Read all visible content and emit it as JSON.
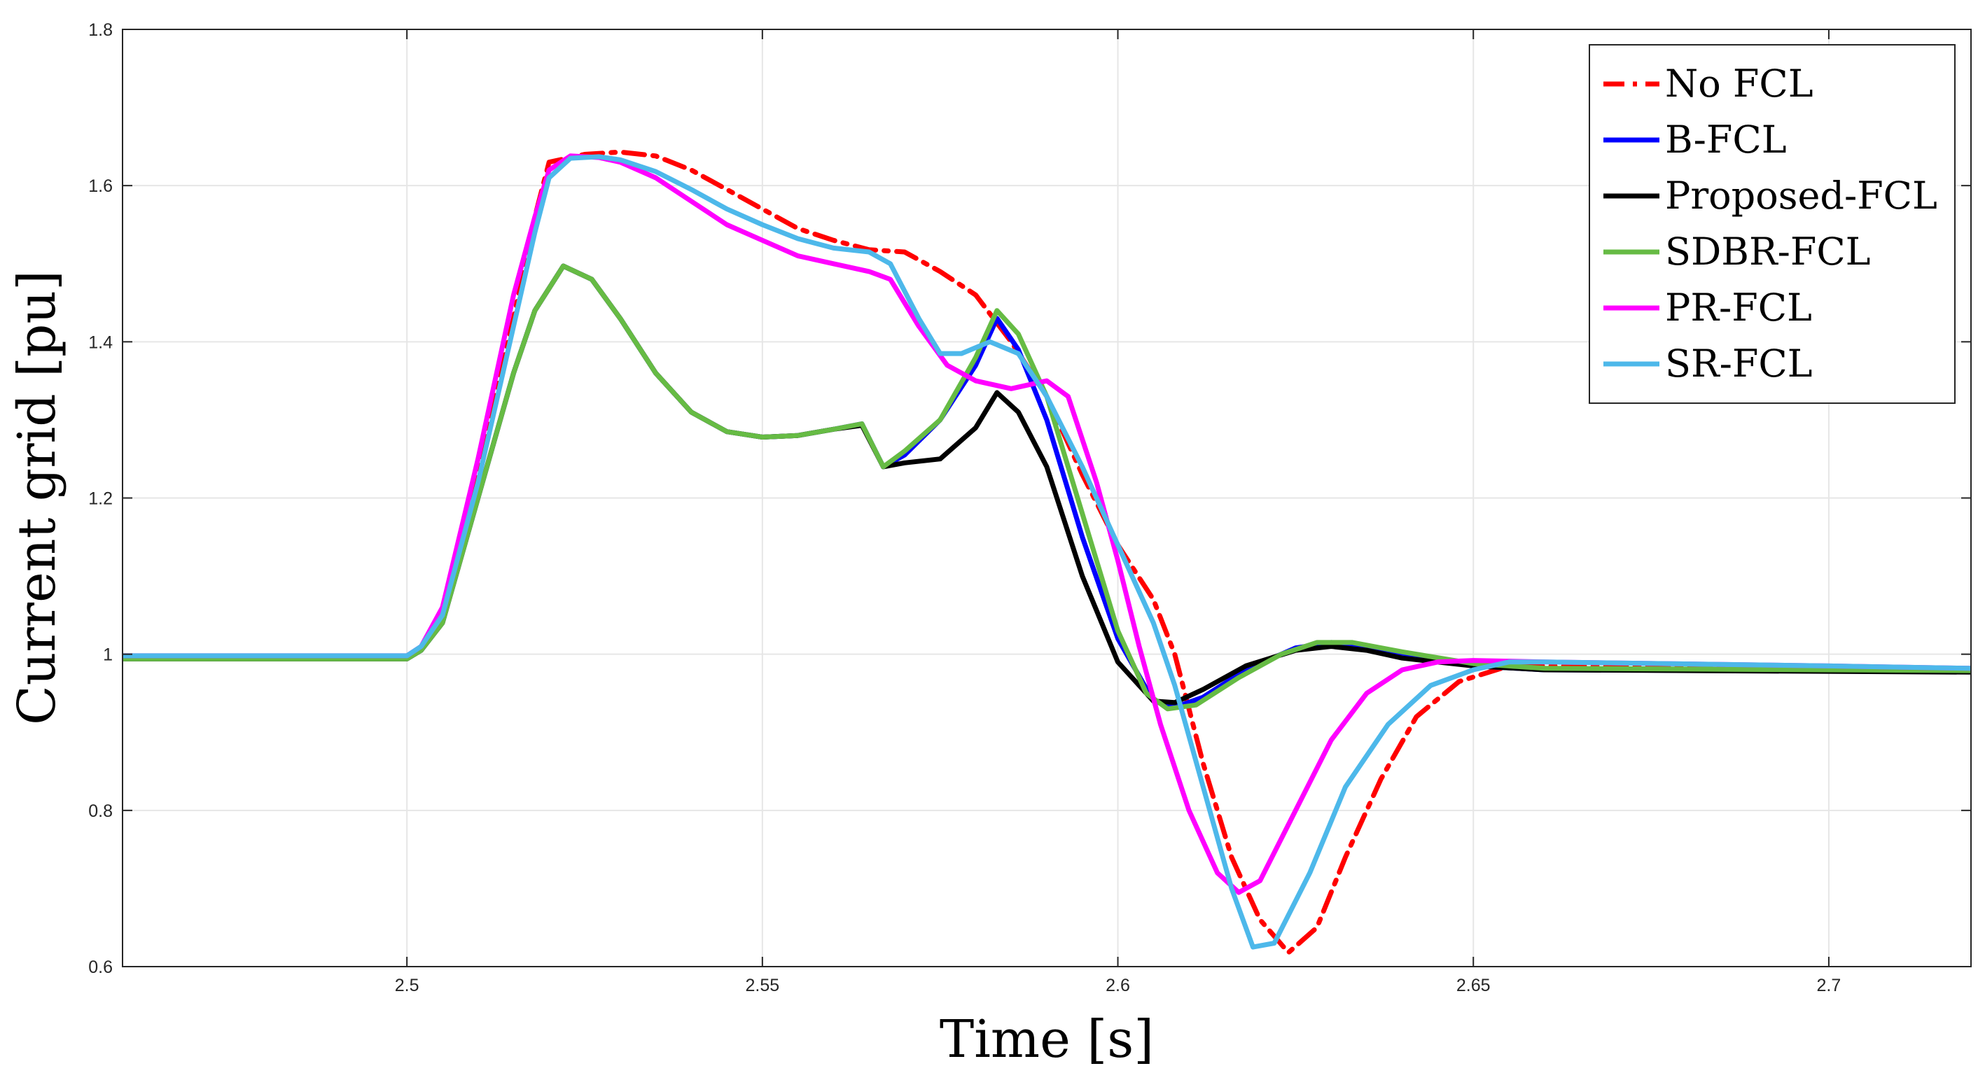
{
  "chart_data": {
    "type": "line",
    "title": "",
    "xlabel": "Time [s]",
    "ylabel": "Current grid [pu]",
    "xlim": [
      2.46,
      2.72
    ],
    "ylim": [
      0.6,
      1.8
    ],
    "xticks": [
      2.5,
      2.55,
      2.6,
      2.65,
      2.7
    ],
    "xtick_labels": [
      "2.5",
      "2.55",
      "2.6",
      "2.65",
      "2.7"
    ],
    "yticks": [
      0.6,
      0.8,
      1.0,
      1.2,
      1.4,
      1.6,
      1.8
    ],
    "ytick_labels": [
      "0.6",
      "0.8",
      "1",
      "1.2",
      "1.4",
      "1.6",
      "1.8"
    ],
    "grid": true,
    "legend_position": "top-right",
    "series": [
      {
        "name": "No FCL",
        "color": "#ff0000",
        "dash": "dashdot",
        "points": [
          [
            2.46,
            0.994
          ],
          [
            2.5,
            0.994
          ],
          [
            2.502,
            1.01
          ],
          [
            2.505,
            1.05
          ],
          [
            2.51,
            1.24
          ],
          [
            2.515,
            1.43
          ],
          [
            2.518,
            1.56
          ],
          [
            2.52,
            1.63
          ],
          [
            2.525,
            1.64
          ],
          [
            2.53,
            1.643
          ],
          [
            2.535,
            1.638
          ],
          [
            2.54,
            1.62
          ],
          [
            2.545,
            1.595
          ],
          [
            2.55,
            1.57
          ],
          [
            2.555,
            1.545
          ],
          [
            2.56,
            1.53
          ],
          [
            2.565,
            1.518
          ],
          [
            2.57,
            1.515
          ],
          [
            2.575,
            1.49
          ],
          [
            2.58,
            1.46
          ],
          [
            2.585,
            1.4
          ],
          [
            2.59,
            1.33
          ],
          [
            2.595,
            1.23
          ],
          [
            2.6,
            1.14
          ],
          [
            2.605,
            1.07
          ],
          [
            2.608,
            1.0
          ],
          [
            2.612,
            0.86
          ],
          [
            2.616,
            0.74
          ],
          [
            2.62,
            0.66
          ],
          [
            2.624,
            0.618
          ],
          [
            2.628,
            0.65
          ],
          [
            2.632,
            0.74
          ],
          [
            2.637,
            0.84
          ],
          [
            2.642,
            0.92
          ],
          [
            2.648,
            0.965
          ],
          [
            2.655,
            0.985
          ],
          [
            2.66,
            0.985
          ],
          [
            2.7,
            0.982
          ],
          [
            2.72,
            0.98
          ]
        ]
      },
      {
        "name": "B-FCL",
        "color": "#0000ff",
        "dash": "solid",
        "points": [
          [
            2.46,
            0.994
          ],
          [
            2.5,
            0.994
          ],
          [
            2.502,
            1.005
          ],
          [
            2.505,
            1.04
          ],
          [
            2.51,
            1.2
          ],
          [
            2.515,
            1.36
          ],
          [
            2.518,
            1.44
          ],
          [
            2.522,
            1.497
          ],
          [
            2.526,
            1.48
          ],
          [
            2.53,
            1.43
          ],
          [
            2.535,
            1.36
          ],
          [
            2.54,
            1.31
          ],
          [
            2.545,
            1.285
          ],
          [
            2.55,
            1.278
          ],
          [
            2.555,
            1.28
          ],
          [
            2.56,
            1.288
          ],
          [
            2.564,
            1.295
          ],
          [
            2.567,
            1.24
          ],
          [
            2.57,
            1.255
          ],
          [
            2.575,
            1.3
          ],
          [
            2.58,
            1.37
          ],
          [
            2.583,
            1.43
          ],
          [
            2.586,
            1.39
          ],
          [
            2.59,
            1.3
          ],
          [
            2.595,
            1.15
          ],
          [
            2.6,
            1.02
          ],
          [
            2.605,
            0.94
          ],
          [
            2.608,
            0.932
          ],
          [
            2.612,
            0.945
          ],
          [
            2.618,
            0.98
          ],
          [
            2.625,
            1.008
          ],
          [
            2.63,
            1.015
          ],
          [
            2.635,
            1.01
          ],
          [
            2.64,
            0.998
          ],
          [
            2.65,
            0.985
          ],
          [
            2.66,
            0.98
          ],
          [
            2.72,
            0.978
          ]
        ]
      },
      {
        "name": "Proposed-FCL",
        "color": "#000000",
        "dash": "solid",
        "points": [
          [
            2.46,
            0.994
          ],
          [
            2.5,
            0.994
          ],
          [
            2.502,
            1.005
          ],
          [
            2.505,
            1.04
          ],
          [
            2.51,
            1.2
          ],
          [
            2.515,
            1.36
          ],
          [
            2.518,
            1.44
          ],
          [
            2.522,
            1.497
          ],
          [
            2.526,
            1.48
          ],
          [
            2.53,
            1.43
          ],
          [
            2.535,
            1.36
          ],
          [
            2.54,
            1.31
          ],
          [
            2.545,
            1.285
          ],
          [
            2.55,
            1.278
          ],
          [
            2.555,
            1.28
          ],
          [
            2.56,
            1.288
          ],
          [
            2.564,
            1.293
          ],
          [
            2.567,
            1.24
          ],
          [
            2.57,
            1.245
          ],
          [
            2.575,
            1.25
          ],
          [
            2.58,
            1.29
          ],
          [
            2.583,
            1.335
          ],
          [
            2.586,
            1.31
          ],
          [
            2.59,
            1.24
          ],
          [
            2.595,
            1.1
          ],
          [
            2.6,
            0.99
          ],
          [
            2.605,
            0.94
          ],
          [
            2.608,
            0.938
          ],
          [
            2.612,
            0.955
          ],
          [
            2.618,
            0.985
          ],
          [
            2.625,
            1.005
          ],
          [
            2.63,
            1.01
          ],
          [
            2.635,
            1.005
          ],
          [
            2.64,
            0.995
          ],
          [
            2.65,
            0.985
          ],
          [
            2.66,
            0.98
          ],
          [
            2.72,
            0.977
          ]
        ]
      },
      {
        "name": "SDBR-FCL",
        "color": "#66bb44",
        "dash": "solid",
        "points": [
          [
            2.46,
            0.994
          ],
          [
            2.5,
            0.994
          ],
          [
            2.502,
            1.005
          ],
          [
            2.505,
            1.04
          ],
          [
            2.51,
            1.2
          ],
          [
            2.515,
            1.36
          ],
          [
            2.518,
            1.44
          ],
          [
            2.522,
            1.497
          ],
          [
            2.526,
            1.48
          ],
          [
            2.53,
            1.43
          ],
          [
            2.535,
            1.36
          ],
          [
            2.54,
            1.31
          ],
          [
            2.545,
            1.285
          ],
          [
            2.55,
            1.278
          ],
          [
            2.555,
            1.28
          ],
          [
            2.56,
            1.288
          ],
          [
            2.564,
            1.295
          ],
          [
            2.567,
            1.24
          ],
          [
            2.57,
            1.26
          ],
          [
            2.575,
            1.3
          ],
          [
            2.58,
            1.38
          ],
          [
            2.583,
            1.44
          ],
          [
            2.586,
            1.41
          ],
          [
            2.59,
            1.33
          ],
          [
            2.595,
            1.18
          ],
          [
            2.6,
            1.03
          ],
          [
            2.604,
            0.95
          ],
          [
            2.607,
            0.93
          ],
          [
            2.611,
            0.935
          ],
          [
            2.617,
            0.97
          ],
          [
            2.623,
            1.0
          ],
          [
            2.628,
            1.015
          ],
          [
            2.633,
            1.015
          ],
          [
            2.64,
            1.003
          ],
          [
            2.65,
            0.988
          ],
          [
            2.66,
            0.982
          ],
          [
            2.72,
            0.979
          ]
        ]
      },
      {
        "name": "PR-FCL",
        "color": "#ff00ff",
        "dash": "solid",
        "points": [
          [
            2.46,
            0.998
          ],
          [
            2.5,
            0.998
          ],
          [
            2.502,
            1.01
          ],
          [
            2.505,
            1.06
          ],
          [
            2.51,
            1.25
          ],
          [
            2.515,
            1.46
          ],
          [
            2.518,
            1.56
          ],
          [
            2.52,
            1.62
          ],
          [
            2.523,
            1.638
          ],
          [
            2.527,
            1.636
          ],
          [
            2.53,
            1.63
          ],
          [
            2.535,
            1.61
          ],
          [
            2.54,
            1.58
          ],
          [
            2.545,
            1.55
          ],
          [
            2.55,
            1.53
          ],
          [
            2.555,
            1.51
          ],
          [
            2.56,
            1.5
          ],
          [
            2.565,
            1.49
          ],
          [
            2.568,
            1.48
          ],
          [
            2.572,
            1.42
          ],
          [
            2.576,
            1.37
          ],
          [
            2.58,
            1.35
          ],
          [
            2.585,
            1.34
          ],
          [
            2.59,
            1.35
          ],
          [
            2.593,
            1.33
          ],
          [
            2.597,
            1.22
          ],
          [
            2.6,
            1.12
          ],
          [
            2.603,
            1.01
          ],
          [
            2.606,
            0.91
          ],
          [
            2.61,
            0.8
          ],
          [
            2.614,
            0.72
          ],
          [
            2.617,
            0.695
          ],
          [
            2.62,
            0.71
          ],
          [
            2.625,
            0.8
          ],
          [
            2.63,
            0.89
          ],
          [
            2.635,
            0.95
          ],
          [
            2.64,
            0.98
          ],
          [
            2.645,
            0.99
          ],
          [
            2.65,
            0.992
          ],
          [
            2.66,
            0.99
          ],
          [
            2.7,
            0.985
          ],
          [
            2.72,
            0.982
          ]
        ]
      },
      {
        "name": "SR-FCL",
        "color": "#4db8ea",
        "dash": "solid",
        "points": [
          [
            2.46,
            0.998
          ],
          [
            2.5,
            0.998
          ],
          [
            2.502,
            1.01
          ],
          [
            2.505,
            1.05
          ],
          [
            2.51,
            1.22
          ],
          [
            2.515,
            1.42
          ],
          [
            2.518,
            1.54
          ],
          [
            2.52,
            1.61
          ],
          [
            2.523,
            1.635
          ],
          [
            2.527,
            1.637
          ],
          [
            2.53,
            1.633
          ],
          [
            2.535,
            1.618
          ],
          [
            2.54,
            1.595
          ],
          [
            2.545,
            1.57
          ],
          [
            2.55,
            1.55
          ],
          [
            2.555,
            1.532
          ],
          [
            2.56,
            1.52
          ],
          [
            2.565,
            1.515
          ],
          [
            2.568,
            1.5
          ],
          [
            2.572,
            1.43
          ],
          [
            2.575,
            1.385
          ],
          [
            2.578,
            1.385
          ],
          [
            2.582,
            1.4
          ],
          [
            2.586,
            1.385
          ],
          [
            2.59,
            1.33
          ],
          [
            2.595,
            1.24
          ],
          [
            2.6,
            1.14
          ],
          [
            2.605,
            1.04
          ],
          [
            2.608,
            0.96
          ],
          [
            2.612,
            0.83
          ],
          [
            2.616,
            0.7
          ],
          [
            2.619,
            0.625
          ],
          [
            2.622,
            0.63
          ],
          [
            2.627,
            0.72
          ],
          [
            2.632,
            0.83
          ],
          [
            2.638,
            0.91
          ],
          [
            2.644,
            0.96
          ],
          [
            2.65,
            0.98
          ],
          [
            2.655,
            0.99
          ],
          [
            2.66,
            0.99
          ],
          [
            2.7,
            0.985
          ],
          [
            2.72,
            0.982
          ]
        ]
      }
    ]
  }
}
